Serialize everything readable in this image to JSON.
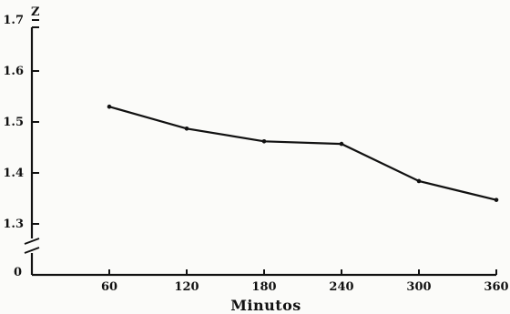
{
  "chart_data": {
    "type": "line",
    "xlabel": "Minutos",
    "ylabel": "Z",
    "x": [
      60,
      120,
      180,
      240,
      300,
      360
    ],
    "series": [
      {
        "values": [
          1.53,
          1.487,
          1.462,
          1.457,
          1.384,
          1.347
        ]
      }
    ],
    "xticks": [
      60,
      120,
      180,
      240,
      300,
      360
    ],
    "yticks": [
      1.3,
      1.4,
      1.5,
      1.6,
      1.7
    ],
    "ylim": [
      1.3,
      1.7
    ],
    "xlim": [
      0,
      360
    ],
    "y_axis_break": true,
    "y_origin_label": "0",
    "grid": false,
    "line_color": "#111111"
  }
}
